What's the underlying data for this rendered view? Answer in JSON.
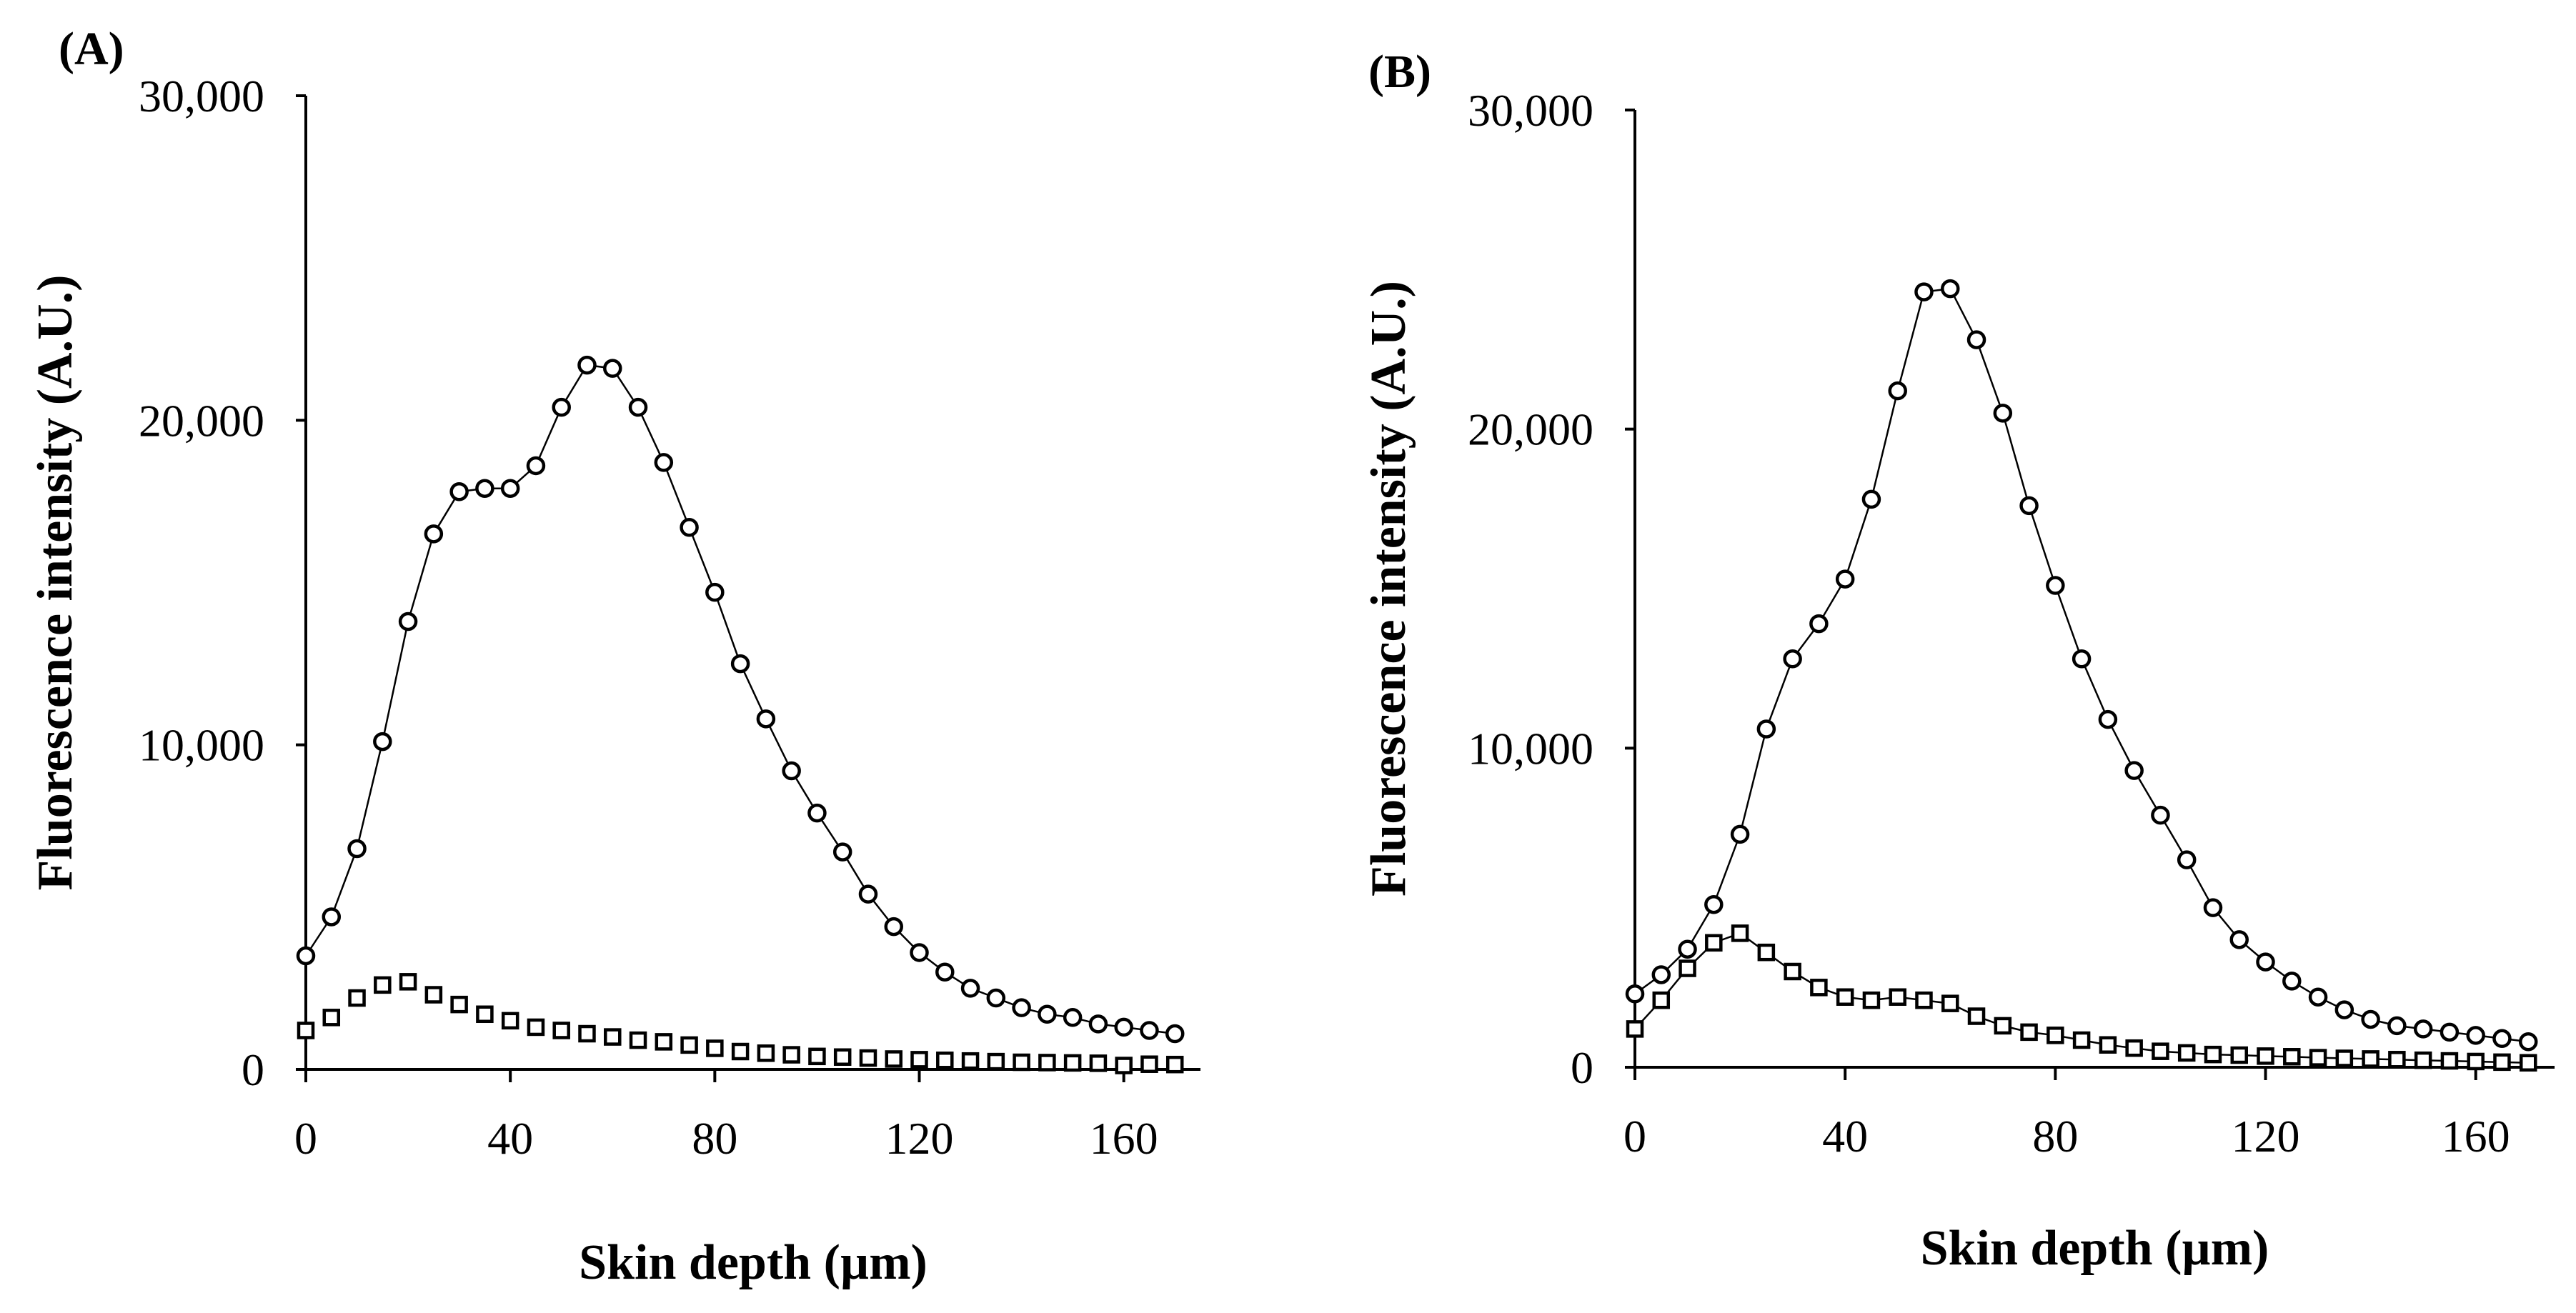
{
  "colors": {
    "line": "#000000",
    "marker_fill": "#ffffff",
    "background": "#ffffff"
  },
  "chart_data": [
    {
      "panel": "(A)",
      "type": "scatter",
      "xlabel": "Skin depth (µm)",
      "ylabel": "Fluorescence intensity (A.U.)",
      "xlim": [
        0,
        175
      ],
      "ylim": [
        0,
        30000
      ],
      "xticks": [
        0,
        40,
        80,
        120,
        160
      ],
      "xtick_labels": [
        "0",
        "40",
        "80",
        "120",
        "160"
      ],
      "yticks": [
        0,
        10000,
        20000,
        30000
      ],
      "ytick_labels": [
        "0",
        "10,000",
        "20,000",
        "30,000"
      ],
      "x": [
        0,
        5,
        10,
        15,
        20,
        25,
        30,
        35,
        40,
        45,
        50,
        55,
        60,
        65,
        70,
        75,
        80,
        85,
        90,
        95,
        100,
        105,
        110,
        115,
        120,
        125,
        130,
        135,
        140,
        145,
        150,
        155,
        160,
        165,
        170
      ],
      "series": [
        {
          "name": "circles",
          "marker": "circle",
          "connected": true,
          "values": [
            3500,
            4700,
            6800,
            10100,
            13800,
            16500,
            17800,
            17900,
            17900,
            18600,
            20400,
            21700,
            21600,
            20400,
            18700,
            16700,
            14700,
            12500,
            10800,
            9200,
            7900,
            6700,
            5400,
            4400,
            3600,
            3000,
            2500,
            2200,
            1900,
            1700,
            1600,
            1400,
            1300,
            1200,
            1100
          ]
        },
        {
          "name": "squares",
          "marker": "square",
          "connected": false,
          "values": [
            1200,
            1600,
            2200,
            2600,
            2700,
            2300,
            2000,
            1700,
            1500,
            1300,
            1200,
            1100,
            1000,
            900,
            850,
            750,
            650,
            550,
            500,
            450,
            400,
            380,
            350,
            320,
            300,
            280,
            260,
            240,
            220,
            210,
            200,
            190,
            120,
            160,
            150
          ]
        }
      ]
    },
    {
      "panel": "(B)",
      "type": "scatter",
      "xlabel": "Skin depth (µm)",
      "ylabel": "Fluorescence intensity (A.U.)",
      "xlim": [
        0,
        175
      ],
      "ylim": [
        0,
        30000
      ],
      "xticks": [
        0,
        40,
        80,
        120,
        160
      ],
      "xtick_labels": [
        "0",
        "40",
        "80",
        "120",
        "160"
      ],
      "yticks": [
        0,
        10000,
        20000,
        30000
      ],
      "ytick_labels": [
        "0",
        "10,000",
        "20,000",
        "30,000"
      ],
      "x": [
        0,
        5,
        10,
        15,
        20,
        25,
        30,
        35,
        40,
        45,
        50,
        55,
        60,
        65,
        70,
        75,
        80,
        85,
        90,
        95,
        100,
        105,
        110,
        115,
        120,
        125,
        130,
        135,
        140,
        145,
        150,
        155,
        160,
        165,
        170
      ],
      "series": [
        {
          "name": "circles",
          "marker": "circle",
          "connected": true,
          "values": [
            2300,
            2900,
            3700,
            5100,
            7300,
            10600,
            12800,
            13900,
            15300,
            17800,
            21200,
            24300,
            24400,
            22800,
            20500,
            17600,
            15100,
            12800,
            10900,
            9300,
            7900,
            6500,
            5000,
            4000,
            3300,
            2700,
            2200,
            1800,
            1500,
            1300,
            1200,
            1100,
            1000,
            900,
            800
          ]
        },
        {
          "name": "squares",
          "marker": "square",
          "connected": true,
          "values": [
            1200,
            2100,
            3100,
            3900,
            4200,
            3600,
            3000,
            2500,
            2200,
            2100,
            2200,
            2100,
            2000,
            1600,
            1300,
            1100,
            1000,
            850,
            700,
            600,
            500,
            450,
            400,
            380,
            350,
            330,
            300,
            280,
            260,
            240,
            220,
            200,
            180,
            160,
            140
          ]
        }
      ]
    }
  ]
}
